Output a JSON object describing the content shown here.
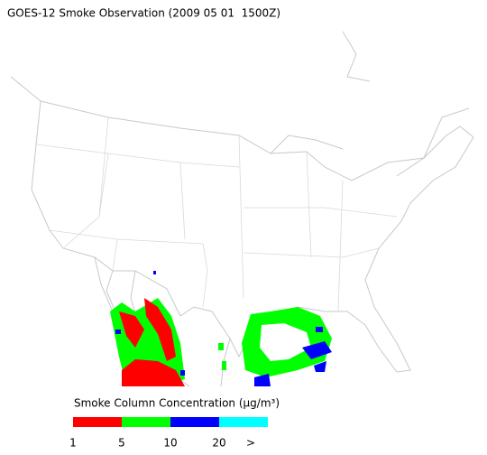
{
  "title": "GOES-12 Smoke Observation (2009 05 01  1500Z)",
  "legend": {
    "title": "Smoke Column Concentration (μg/m³)",
    "colors": [
      "#ff0000",
      "#00ff00",
      "#0000ff",
      "#00ffff"
    ],
    "labels": [
      "1",
      "5",
      "10",
      "20",
      ">"
    ]
  }
}
